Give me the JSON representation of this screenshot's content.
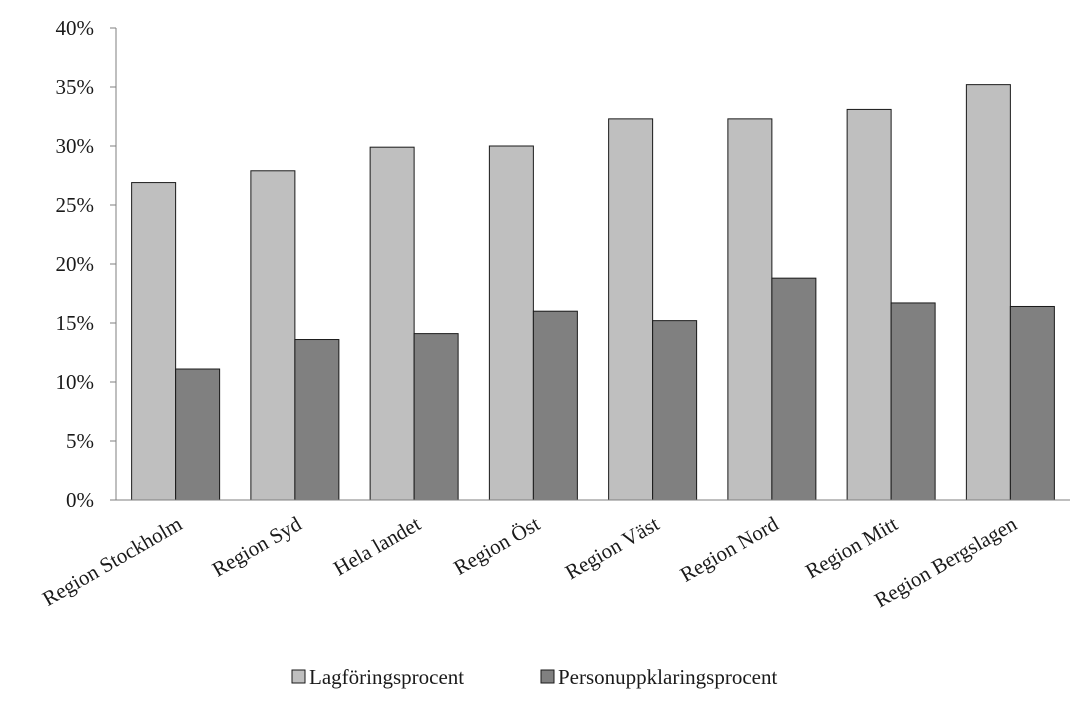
{
  "chart_data": {
    "type": "bar",
    "title": "",
    "xlabel": "",
    "ylabel": "",
    "ylim": [
      0,
      0.4
    ],
    "yticks": [
      "0%",
      "5%",
      "10%",
      "15%",
      "20%",
      "25%",
      "30%",
      "35%",
      "40%"
    ],
    "ytick_values": [
      0,
      0.05,
      0.1,
      0.15,
      0.2,
      0.25,
      0.3,
      0.35,
      0.4
    ],
    "categories": [
      "Region Stockholm",
      "Region Syd",
      "Hela landet",
      "Region Öst",
      "Region Väst",
      "Region Nord",
      "Region Mitt",
      "Region Bergslagen"
    ],
    "series": [
      {
        "name": "Lagföringsprocent",
        "color": "#bfbfbf",
        "values": [
          0.269,
          0.279,
          0.299,
          0.3,
          0.323,
          0.323,
          0.331,
          0.352
        ]
      },
      {
        "name": "Personuppklaringsprocent",
        "color": "#808080",
        "values": [
          0.111,
          0.136,
          0.141,
          0.16,
          0.152,
          0.188,
          0.167,
          0.164
        ]
      }
    ],
    "grid": false,
    "legend_position": "bottom"
  }
}
